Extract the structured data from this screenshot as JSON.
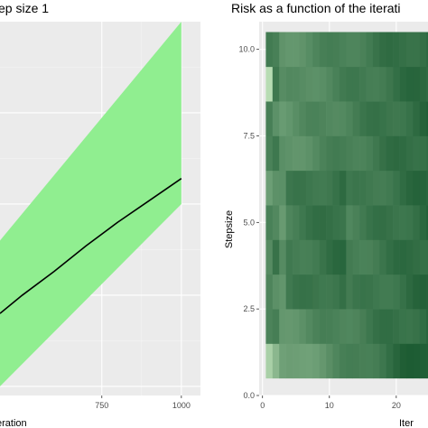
{
  "chart_data": [
    {
      "type": "area",
      "title": "ep size 1",
      "xlabel": "eration",
      "ylabel": "",
      "xlim": [
        430,
        1060
      ],
      "ylim": [
        -1.05,
        1.0
      ],
      "x_ticks": [
        {
          "value": 750,
          "label": "750"
        },
        {
          "value": 1000,
          "label": "1000"
        }
      ],
      "grid": true,
      "series": [
        {
          "kind": "band",
          "x": [
            430,
            1000
          ],
          "lower": [
            -1.0,
            0.0
          ],
          "upper": [
            -0.2,
            1.0
          ],
          "color": "#90ee90"
        },
        {
          "kind": "line",
          "x": [
            430,
            500,
            600,
            700,
            800,
            900,
            1000
          ],
          "y": [
            -0.6,
            -0.5,
            -0.37,
            -0.23,
            -0.1,
            0.02,
            0.14
          ],
          "color": "#000000"
        }
      ]
    },
    {
      "type": "heatmap",
      "title": "Risk as a function of the iterati",
      "xlabel": "Iter",
      "ylabel": "Stepsize",
      "xlim": [
        -0.5,
        26.5
      ],
      "ylim": [
        0,
        10.8
      ],
      "x_ticks": [
        {
          "value": 0,
          "label": "0"
        },
        {
          "value": 10,
          "label": "10"
        },
        {
          "value": 20,
          "label": "20"
        }
      ],
      "y_ticks": [
        {
          "value": 0,
          "label": "0.0"
        },
        {
          "value": 2.5,
          "label": "2.5"
        },
        {
          "value": 5.0,
          "label": "5.0"
        },
        {
          "value": 7.5,
          "label": "7.5"
        },
        {
          "value": 10.0,
          "label": "10.0"
        }
      ],
      "grid": true,
      "tile_x_range": [
        0.5,
        26.5
      ],
      "tile_y_range": [
        0.5,
        10.5
      ],
      "x_count": 26,
      "y_count": 10,
      "low_color": "#c7e9c0",
      "high_color": "#00441b"
    }
  ]
}
